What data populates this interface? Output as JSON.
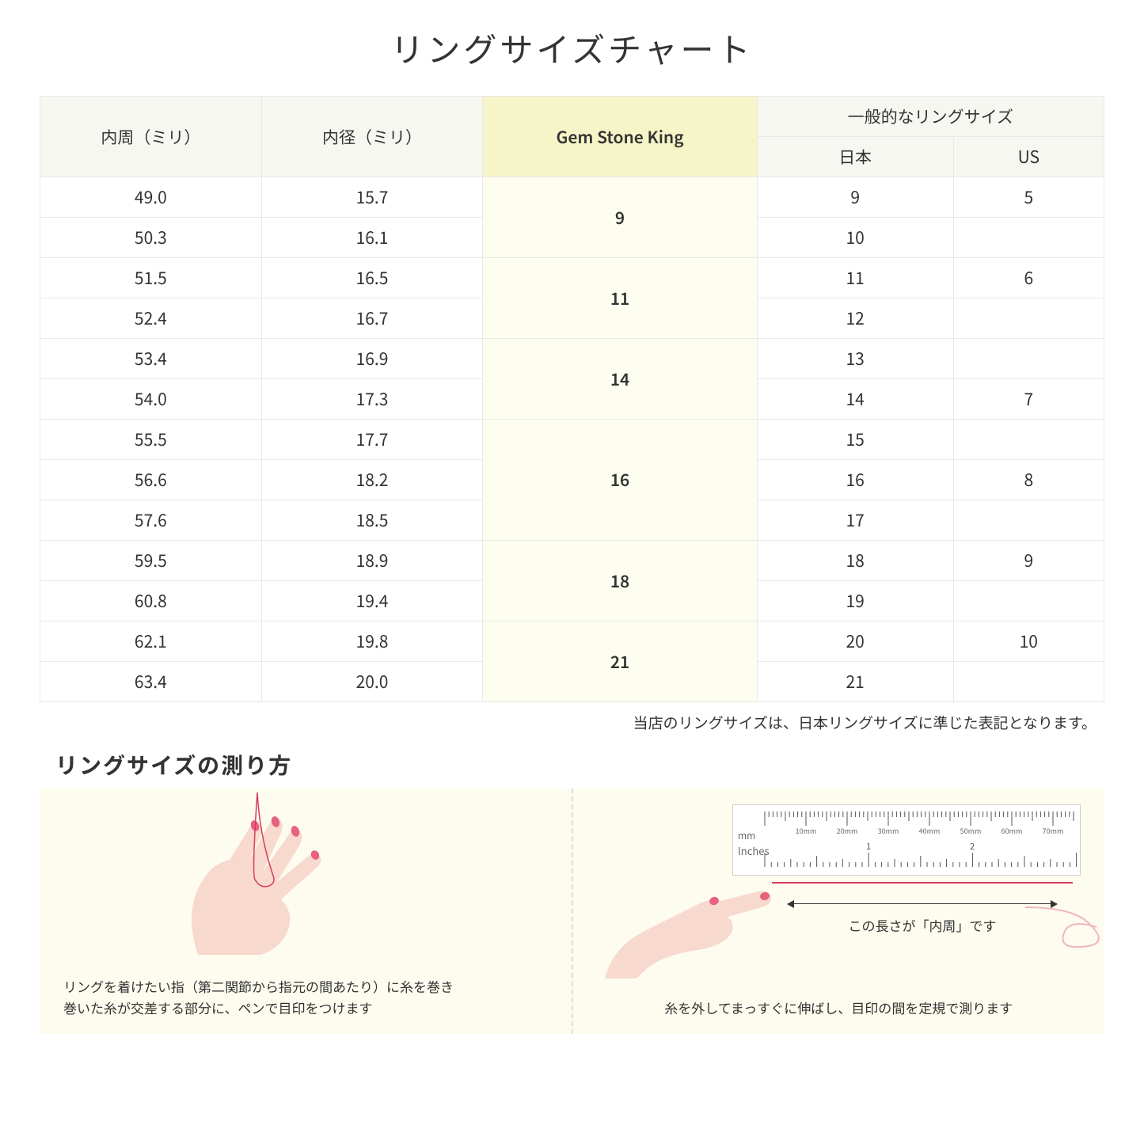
{
  "title": "リングサイズチャート",
  "headers": {
    "col1": "内周（ミリ）",
    "col2": "内径（ミリ）",
    "col3": "Gem Stone King",
    "col4_group": "一般的なリングサイズ",
    "col4a": "日本",
    "col4b": "US"
  },
  "rows": [
    {
      "c": "49.0",
      "d": "15.7",
      "g": "9",
      "gspan": 2,
      "j": "9",
      "u": "5"
    },
    {
      "c": "50.3",
      "d": "16.1",
      "j": "10",
      "u": ""
    },
    {
      "c": "51.5",
      "d": "16.5",
      "g": "11",
      "gspan": 2,
      "j": "11",
      "u": "6"
    },
    {
      "c": "52.4",
      "d": "16.7",
      "j": "12",
      "u": ""
    },
    {
      "c": "53.4",
      "d": "16.9",
      "g": "14",
      "gspan": 2,
      "j": "13",
      "u": ""
    },
    {
      "c": "54.0",
      "d": "17.3",
      "j": "14",
      "u": "7"
    },
    {
      "c": "55.5",
      "d": "17.7",
      "g": "16",
      "gspan": 3,
      "j": "15",
      "u": ""
    },
    {
      "c": "56.6",
      "d": "18.2",
      "j": "16",
      "u": "8"
    },
    {
      "c": "57.6",
      "d": "18.5",
      "j": "17",
      "u": ""
    },
    {
      "c": "59.5",
      "d": "18.9",
      "g": "18",
      "gspan": 2,
      "j": "18",
      "u": "9"
    },
    {
      "c": "60.8",
      "d": "19.4",
      "j": "19",
      "u": ""
    },
    {
      "c": "62.1",
      "d": "19.8",
      "g": "21",
      "gspan": 2,
      "j": "20",
      "u": "10"
    },
    {
      "c": "63.4",
      "d": "20.0",
      "j": "21",
      "u": ""
    }
  ],
  "note": "当店のリングサイズは、日本リングサイズに準じた表記となります。",
  "measure_title": "リングサイズの測り方",
  "instruction_left": "リングを着けたい指（第二関節から指元の間あたり）に糸を巻き\n巻いた糸が交差する部分に、ペンで目印をつけます",
  "instruction_right": "糸を外してまっすぐに伸ばし、目印の間を定規で測ります",
  "arrow_caption": "この長さが「内周」です",
  "ruler": {
    "mm_label": "mm",
    "inches_label": "Inches",
    "mm_ticks": [
      "10mm",
      "20mm",
      "30mm",
      "40mm",
      "50mm",
      "60mm",
      "70mm"
    ],
    "inch_major": [
      "1",
      "2"
    ]
  },
  "colors": {
    "skin": "#f7d9cd",
    "nail": "#e8617f",
    "thread": "#d63d5e",
    "highlight_bg": "#f5f5c8",
    "header_bg": "#f7f7f2",
    "instruction_bg": "#fdfcef"
  }
}
